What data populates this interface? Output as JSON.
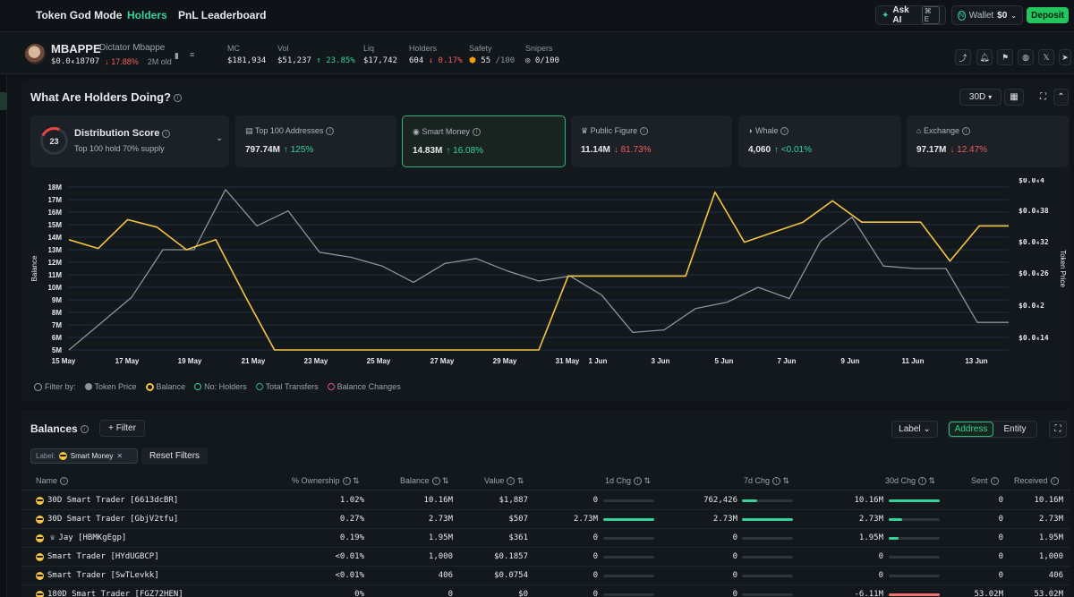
{
  "nav": {
    "tabs": [
      "Token God Mode",
      "Holders",
      "PnL Leaderboard"
    ],
    "ask_ai": "Ask AI",
    "ask_ai_shortcut": "⌘ E",
    "wallet_label": "Wallet",
    "wallet_value": "$0",
    "deposit": "Deposit"
  },
  "token": {
    "ticker": "MBAPPE",
    "name": "Dictator Mbappe",
    "price": "$0.0₄18707",
    "change": "↓ 17.88%",
    "age": "2M old",
    "stats": [
      {
        "label": "MC",
        "value": "$181,934"
      },
      {
        "label": "Vol",
        "value": "$51,237",
        "change": "↑ 23.85%"
      },
      {
        "label": "Liq",
        "value": "$17,742"
      },
      {
        "label": "Holders",
        "value": "604",
        "change": "↓ 0.17%"
      },
      {
        "label": "Safety",
        "value": "55",
        "suffix": "/100"
      },
      {
        "label": "Snipers",
        "value": "0/100"
      }
    ]
  },
  "holders": {
    "title": "What Are Holders Doing?",
    "range": "30D",
    "score_value": "23",
    "score_title": "Distribution Score",
    "score_sub": "Top 100 hold 70% supply",
    "cards": [
      {
        "title": "Top 100 Addresses",
        "value": "797.74M",
        "change": "↑ 125%",
        "dir": "up"
      },
      {
        "title": "Smart Money",
        "value": "14.83M",
        "change": "↑ 16.08%",
        "dir": "up"
      },
      {
        "title": "Public Figure",
        "value": "11.14M",
        "change": "↓ 81.73%",
        "dir": "down"
      },
      {
        "title": "Whale",
        "value": "4,060",
        "change": "↑ <0.01%",
        "dir": "up"
      },
      {
        "title": "Exchange",
        "value": "97.17M",
        "change": "↓ 12.47%",
        "dir": "down"
      }
    ],
    "legend": {
      "filter_by": "Filter by:",
      "items": [
        "Token Price",
        "Balance",
        "No: Holders",
        "Total Transfers",
        "Balance Changes"
      ]
    }
  },
  "chart_data": {
    "type": "line",
    "xlabel": "",
    "ylabel": "Balance",
    "y2label": "Token Price",
    "x_ticks": [
      "15 May",
      "17 May",
      "19 May",
      "21 May",
      "23 May",
      "25 May",
      "27 May",
      "29 May",
      "31 May",
      "1 Jun",
      "3 Jun",
      "5 Jun",
      "7 Jun",
      "9 Jun",
      "11 Jun",
      "13 Jun"
    ],
    "y_ticks": [
      "5M",
      "6M",
      "7M",
      "8M",
      "9M",
      "10M",
      "11M",
      "12M",
      "13M",
      "14M",
      "15M",
      "16M",
      "17M",
      "18M"
    ],
    "y2_ticks": [
      "$0.0₄14",
      "$0.0₄2",
      "$0.0₄26",
      "$0.0₄32",
      "$0.0₄38",
      "$0.0₄4"
    ],
    "ylim": [
      5,
      18
    ],
    "series": [
      {
        "name": "Balance",
        "color": "#f5c542",
        "values": [
          13.8,
          13.1,
          15.4,
          14.8,
          13.0,
          13.8,
          9.3,
          5.0,
          5.0,
          5.0,
          5.0,
          5.0,
          5.0,
          5.0,
          5.0,
          5.0,
          5.0,
          10.9,
          10.9,
          10.9,
          10.9,
          10.9,
          17.6,
          13.6,
          14.4,
          15.2,
          16.9,
          15.2,
          15.2,
          15.2,
          12.1,
          14.9,
          14.9
        ]
      },
      {
        "name": "Token Price",
        "color": "#8b939c",
        "values": [
          5.0,
          7.1,
          9.2,
          13.0,
          13.0,
          17.8,
          14.9,
          16.1,
          12.8,
          12.4,
          11.7,
          10.4,
          11.9,
          12.3,
          11.3,
          10.5,
          10.9,
          9.4,
          6.4,
          6.6,
          8.3,
          8.8,
          10.0,
          9.1,
          13.7,
          15.6,
          11.7,
          11.5,
          11.5,
          7.2,
          7.2
        ]
      }
    ]
  },
  "balances": {
    "title": "Balances",
    "filter": "+ Filter",
    "label_dropdown": "Label",
    "toggle": [
      "Address",
      "Entity"
    ],
    "chip_label": "Label:",
    "chip_value": "Smart Money",
    "reset": "Reset Filters",
    "columns": [
      "Name",
      "% Ownership",
      "Balance",
      "Value",
      "1d Chg",
      "7d Chg",
      "30d Chg",
      "Sent",
      "Received"
    ],
    "rows": [
      {
        "name": "30D Smart Trader [6613dcBR]",
        "own": "1.02%",
        "bal": "10.16M",
        "val": "$1,887",
        "d1": "0",
        "d1bar": 0,
        "d7": "762,426",
        "d7bar": 0.3,
        "d30": "10.16M",
        "d30bar": 1.0,
        "sent": "0",
        "recv": "10.16M",
        "icon": "face"
      },
      {
        "name": "30D Smart Trader [GbjV2tfu]",
        "own": "0.27%",
        "bal": "2.73M",
        "val": "$507",
        "d1": "2.73M",
        "d1bar": 1.0,
        "d7": "2.73M",
        "d7bar": 1.0,
        "d30": "2.73M",
        "d30bar": 0.27,
        "sent": "0",
        "recv": "2.73M",
        "icon": "face"
      },
      {
        "name": "Jay [HBMKgEgp]",
        "own": "0.19%",
        "bal": "1.95M",
        "val": "$361",
        "d1": "0",
        "d1bar": 0,
        "d7": "0",
        "d7bar": 0,
        "d30": "1.95M",
        "d30bar": 0.19,
        "sent": "0",
        "recv": "1.95M",
        "icon": "face-figure"
      },
      {
        "name": "Smart Trader [HYdUGBCP]",
        "own": "<0.01%",
        "bal": "1,000",
        "val": "$0.1857",
        "d1": "0",
        "d1bar": 0,
        "d7": "0",
        "d7bar": 0,
        "d30": "0",
        "d30bar": 0,
        "sent": "0",
        "recv": "1,000",
        "icon": "face"
      },
      {
        "name": "Smart Trader [SwTLevkk]",
        "own": "<0.01%",
        "bal": "406",
        "val": "$0.0754",
        "d1": "0",
        "d1bar": 0,
        "d7": "0",
        "d7bar": 0,
        "d30": "0",
        "d30bar": 0,
        "sent": "0",
        "recv": "406",
        "icon": "face"
      },
      {
        "name": "180D Smart Trader [FGZ72HEN]",
        "own": "0%",
        "bal": "0",
        "val": "$0",
        "d1": "0",
        "d1bar": 0,
        "d7": "0",
        "d7bar": 0,
        "d30": "-6.11M",
        "d30bar": -1.0,
        "sent": "53.02M",
        "recv": "53.02M",
        "icon": "face"
      }
    ]
  }
}
